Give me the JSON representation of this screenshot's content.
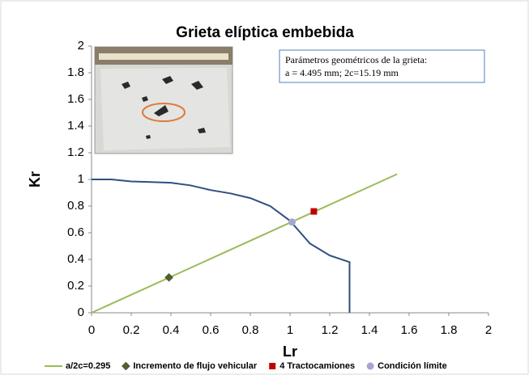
{
  "chart_data": {
    "type": "line",
    "title": "Grieta elíptica embebida",
    "x_label": "Lr",
    "y_label": "Kr",
    "annotation": [
      "Parámetros geométricos de la grieta:",
      "a = 4.495 mm; 2c=15.19 mm"
    ],
    "xlim": [
      0,
      2
    ],
    "xticks": [
      0,
      0.2,
      0.4,
      0.6,
      0.8,
      1,
      1.2,
      1.4,
      1.6,
      1.8,
      2
    ],
    "ylim": [
      0,
      2
    ],
    "yticks": [
      0,
      0.2,
      0.4,
      0.6,
      0.8,
      1,
      1.2,
      1.4,
      1.6,
      1.8,
      2
    ],
    "legend": "bottom",
    "series": [
      {
        "kind": "line",
        "color": "#2f4f7f",
        "x": [
          0,
          0.1,
          0.2,
          0.3,
          0.4,
          0.5,
          0.6,
          0.7,
          0.8,
          0.9,
          1.0,
          1.1,
          1.2,
          1.3,
          1.3
        ],
        "values": [
          1,
          1,
          0.985,
          0.98,
          0.975,
          0.955,
          0.92,
          0.895,
          0.86,
          0.8,
          0.69,
          0.52,
          0.43,
          0.38,
          0
        ]
      },
      {
        "name": "a/2c=0.295",
        "kind": "line",
        "color": "#9bbb59",
        "x": [
          0,
          1.54
        ],
        "values": [
          0,
          1.04
        ]
      },
      {
        "name": "Incremento de flujo vehicular",
        "kind": "diamond",
        "color": "#4f6228",
        "x": [
          0.39
        ],
        "values": [
          0.265
        ]
      },
      {
        "name": "4 Tractocamiones",
        "kind": "square",
        "color": "#c00000",
        "x": [
          1.12
        ],
        "values": [
          0.76
        ]
      },
      {
        "name": "Condición límite",
        "kind": "circle",
        "color": "#a6a6d2",
        "x": [
          1.01
        ],
        "values": [
          0.68
        ]
      }
    ]
  }
}
